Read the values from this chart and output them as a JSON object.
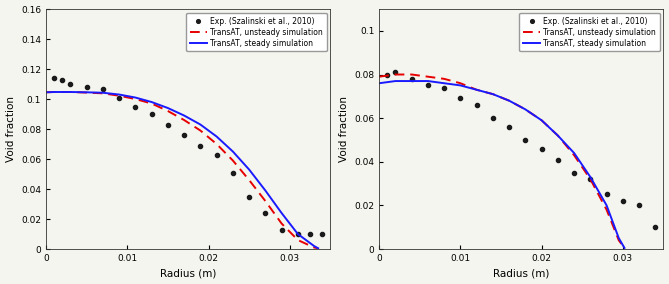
{
  "left_plot": {
    "ylim": [
      0,
      0.16
    ],
    "xlim": [
      0,
      0.035
    ],
    "ylabel": "Void fraction",
    "xlabel": "Radius (m)",
    "yticks": [
      0,
      0.02,
      0.04,
      0.06,
      0.08,
      0.1,
      0.12,
      0.14,
      0.16
    ],
    "xticks": [
      0,
      0.01,
      0.02,
      0.03
    ],
    "exp_x": [
      0.001,
      0.002,
      0.003,
      0.005,
      0.007,
      0.009,
      0.011,
      0.013,
      0.015,
      0.017,
      0.019,
      0.021,
      0.023,
      0.025,
      0.027,
      0.029,
      0.031,
      0.0325,
      0.034
    ],
    "exp_y": [
      0.114,
      0.113,
      0.11,
      0.108,
      0.107,
      0.101,
      0.095,
      0.09,
      0.083,
      0.076,
      0.069,
      0.063,
      0.051,
      0.035,
      0.024,
      0.013,
      0.01,
      0.01,
      0.01
    ],
    "steady_x": [
      0.0,
      0.001,
      0.003,
      0.005,
      0.007,
      0.009,
      0.011,
      0.013,
      0.015,
      0.017,
      0.019,
      0.021,
      0.023,
      0.025,
      0.027,
      0.029,
      0.031,
      0.033,
      0.0335
    ],
    "steady_y": [
      0.1045,
      0.1047,
      0.1047,
      0.1045,
      0.1042,
      0.103,
      0.101,
      0.098,
      0.094,
      0.089,
      0.083,
      0.075,
      0.065,
      0.053,
      0.039,
      0.024,
      0.01,
      0.002,
      0.0005
    ],
    "unsteady_x": [
      0.0,
      0.001,
      0.003,
      0.005,
      0.007,
      0.009,
      0.011,
      0.013,
      0.015,
      0.017,
      0.019,
      0.021,
      0.023,
      0.025,
      0.027,
      0.029,
      0.031,
      0.033,
      0.0335
    ],
    "unsteady_y": [
      0.1045,
      0.1047,
      0.1047,
      0.1043,
      0.1038,
      0.1022,
      0.1,
      0.097,
      0.092,
      0.086,
      0.079,
      0.07,
      0.059,
      0.046,
      0.032,
      0.017,
      0.006,
      0.001,
      0.0005
    ]
  },
  "right_plot": {
    "ylim": [
      0,
      0.11
    ],
    "xlim": [
      0,
      0.035
    ],
    "ylabel": "Void fraction",
    "xlabel": "Radius (m)",
    "yticks": [
      0,
      0.02,
      0.04,
      0.06,
      0.08,
      0.1
    ],
    "xticks": [
      0,
      0.01,
      0.02,
      0.03
    ],
    "exp_x": [
      0.001,
      0.002,
      0.004,
      0.006,
      0.008,
      0.01,
      0.012,
      0.014,
      0.016,
      0.018,
      0.02,
      0.022,
      0.024,
      0.026,
      0.028,
      0.03,
      0.032,
      0.034
    ],
    "exp_y": [
      0.08,
      0.081,
      0.078,
      0.075,
      0.074,
      0.069,
      0.066,
      0.06,
      0.056,
      0.05,
      0.046,
      0.041,
      0.035,
      0.032,
      0.025,
      0.022,
      0.02,
      0.01
    ],
    "steady_x": [
      0.0,
      0.002,
      0.004,
      0.006,
      0.008,
      0.01,
      0.012,
      0.014,
      0.016,
      0.018,
      0.02,
      0.022,
      0.024,
      0.026,
      0.028,
      0.0295,
      0.0302
    ],
    "steady_y": [
      0.076,
      0.077,
      0.077,
      0.077,
      0.076,
      0.075,
      0.073,
      0.071,
      0.068,
      0.064,
      0.059,
      0.052,
      0.044,
      0.033,
      0.02,
      0.005,
      0.0005
    ],
    "unsteady_x": [
      0.0,
      0.002,
      0.004,
      0.006,
      0.008,
      0.01,
      0.012,
      0.014,
      0.016,
      0.018,
      0.02,
      0.022,
      0.024,
      0.026,
      0.028,
      0.0295,
      0.0302
    ],
    "unsteady_y": [
      0.079,
      0.08,
      0.08,
      0.079,
      0.078,
      0.076,
      0.073,
      0.071,
      0.068,
      0.064,
      0.059,
      0.052,
      0.043,
      0.032,
      0.018,
      0.004,
      0.0005
    ]
  },
  "legend": {
    "exp_label": "Exp. (Szalinski et al., 2010)",
    "steady_label": "TransAT, steady simulation",
    "unsteady_label": "TransAT, unsteady simulation"
  },
  "colors": {
    "exp": "#1a1a1a",
    "steady": "#1a1aff",
    "unsteady": "#e60000"
  },
  "background": "#f5f5f0"
}
